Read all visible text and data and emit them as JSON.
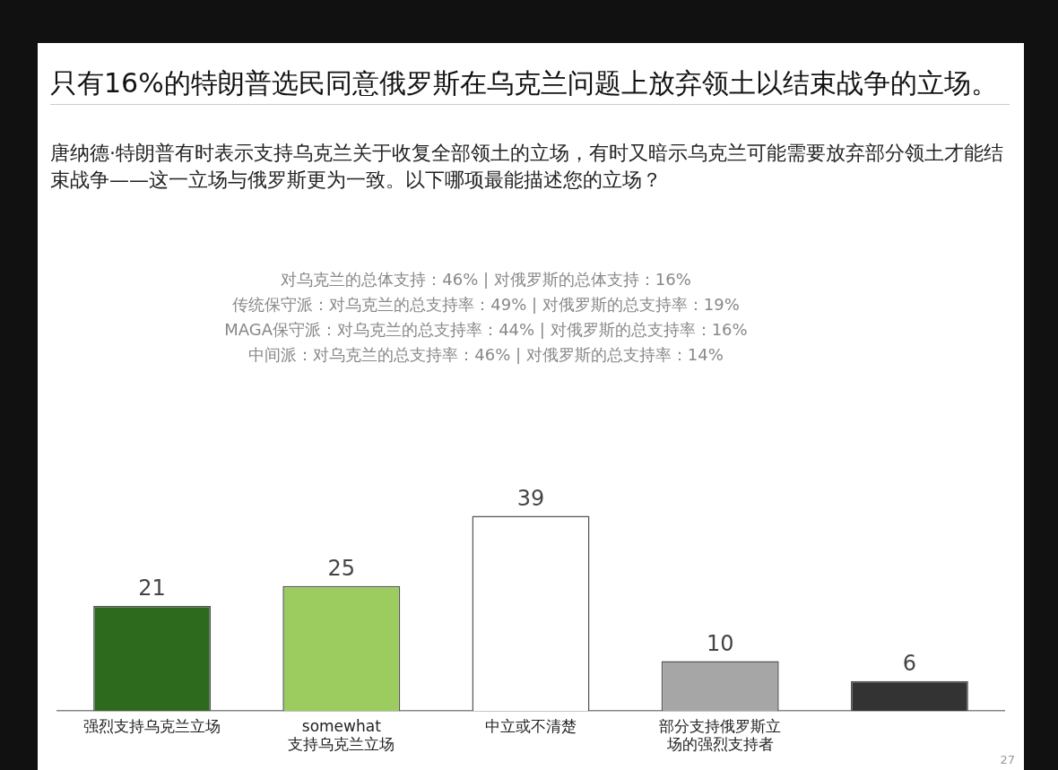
{
  "chart_data": {
    "type": "bar",
    "title": "只有16%的特朗普选民同意俄罗斯在乌克兰问题上放弃领土以结束战争的立场。",
    "subtitle": "唐纳德·特朗普有时表示支持乌克兰关于收复全部领土的立场，有时又暗示乌克兰可能需要放弃部分领土才能结束战争——这一立场与俄罗斯更为一致。以下哪项最能描述您的立场？",
    "annotations": [
      "对乌克兰的总体支持：46% | 对俄罗斯的总体支持：16%",
      "传统保守派：对乌克兰的总支持率：49% | 对俄罗斯的总支持率：19%",
      "MAGA保守派：对乌克兰的总支持率：44% | 对俄罗斯的总支持率：16%",
      "中间派：对乌克兰的总支持率：46% | 对俄罗斯的总支持率：14%",
      "27"
    ],
    "categories": [
      "强烈支持乌克兰立场",
      "somewhat支持乌克兰立场",
      "中立或不清楚",
      "部分支持俄罗斯立场的强烈支持者",
      null
    ],
    "values": [
      21,
      25,
      39,
      10,
      6
    ],
    "colors": [
      "#2d6a1e",
      "#9ccb5f",
      "#ffffff",
      "#a6a6a6",
      "#333333"
    ],
    "data_labels": true,
    "grid": false,
    "legend": false,
    "tick_labels": "x"
  }
}
